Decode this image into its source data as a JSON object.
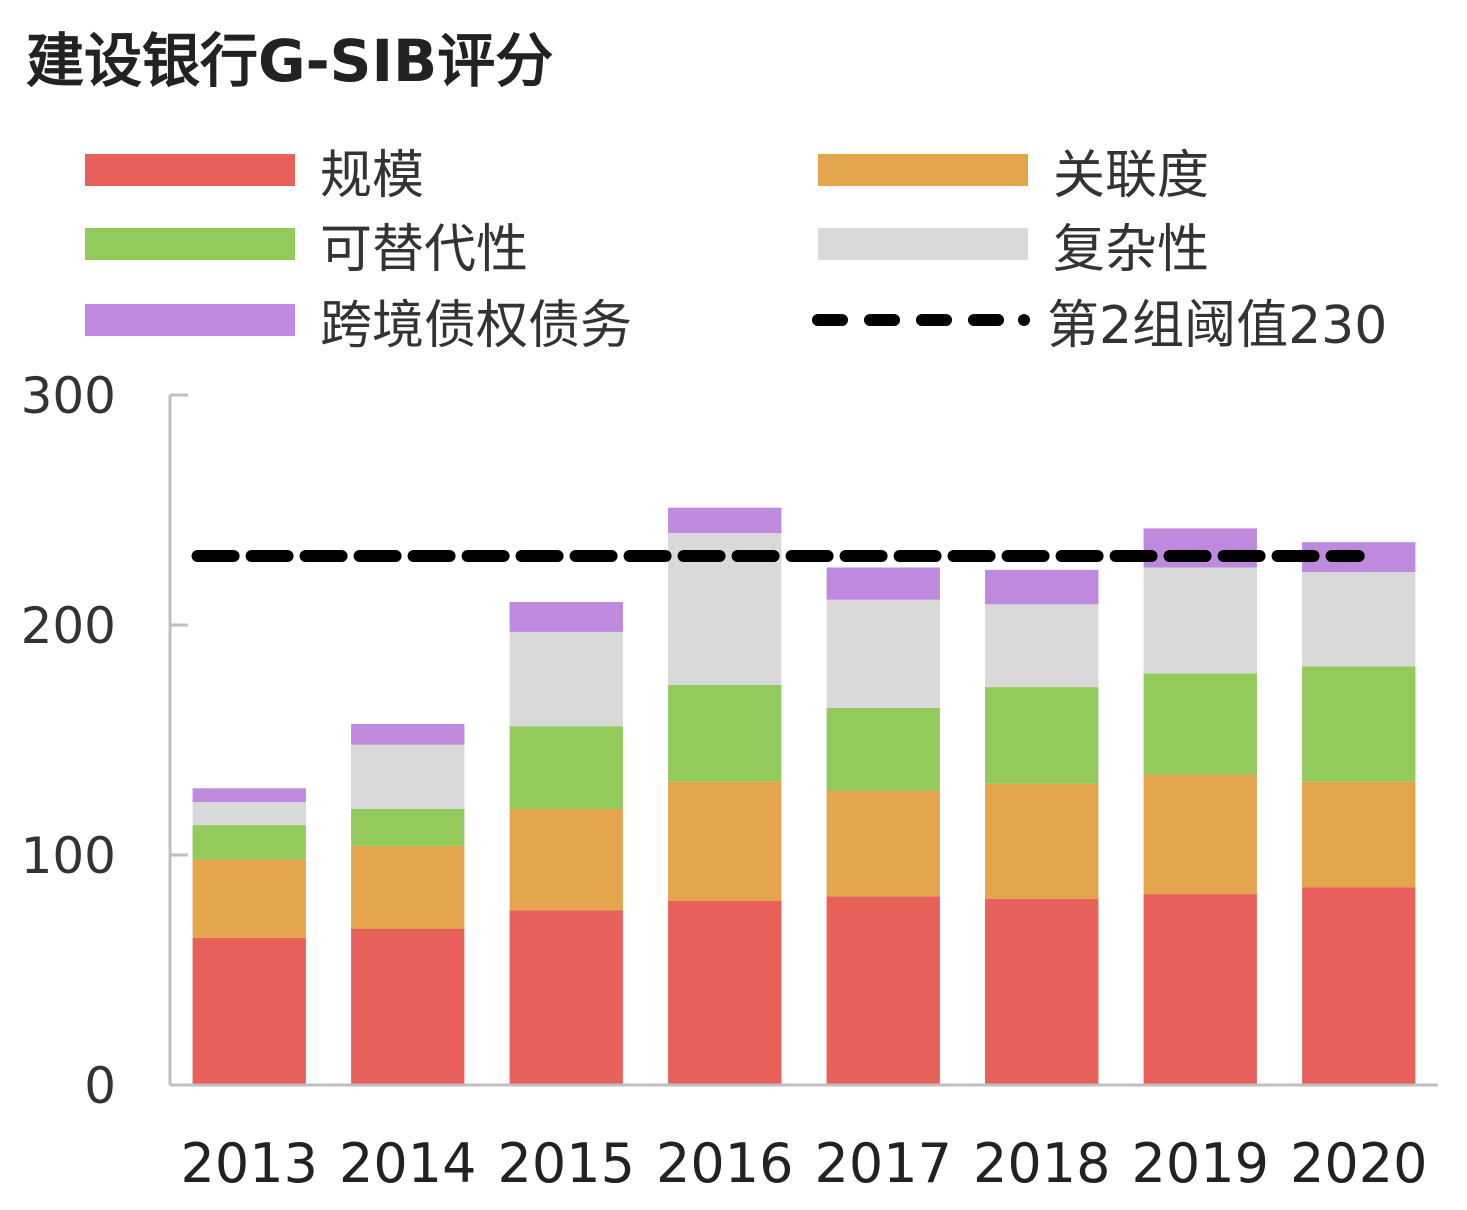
{
  "chart_data": {
    "type": "bar",
    "stacked": true,
    "title": "建设银行G-SIB评分",
    "categories": [
      "2013",
      "2014",
      "2015",
      "2016",
      "2017",
      "2018",
      "2019",
      "2020"
    ],
    "series": [
      {
        "name": "规模",
        "color": "#e8605a",
        "values": [
          64,
          68,
          76,
          80,
          82,
          81,
          83,
          86
        ]
      },
      {
        "name": "关联度",
        "color": "#e5a54d",
        "values": [
          34,
          36,
          44,
          52,
          46,
          50,
          52,
          46
        ]
      },
      {
        "name": "可替代性",
        "color": "#92cb5c",
        "values": [
          15,
          16,
          36,
          42,
          36,
          42,
          44,
          50
        ]
      },
      {
        "name": "复杂性",
        "color": "#d9d9d9",
        "values": [
          10,
          28,
          41,
          66,
          47,
          36,
          46,
          41
        ]
      },
      {
        "name": "跨境债权债务",
        "color": "#bf89dd",
        "values": [
          6,
          9,
          13,
          11,
          14,
          15,
          17,
          13
        ]
      }
    ],
    "threshold": {
      "name": "第2组阈值230",
      "value": 230,
      "color": "#000000",
      "style": "dashed"
    },
    "ylim": [
      0,
      300
    ],
    "yticks": [
      "0",
      "100",
      "200",
      "300"
    ],
    "xlabel": "",
    "ylabel": "",
    "grid": false,
    "legend_position": "top"
  }
}
